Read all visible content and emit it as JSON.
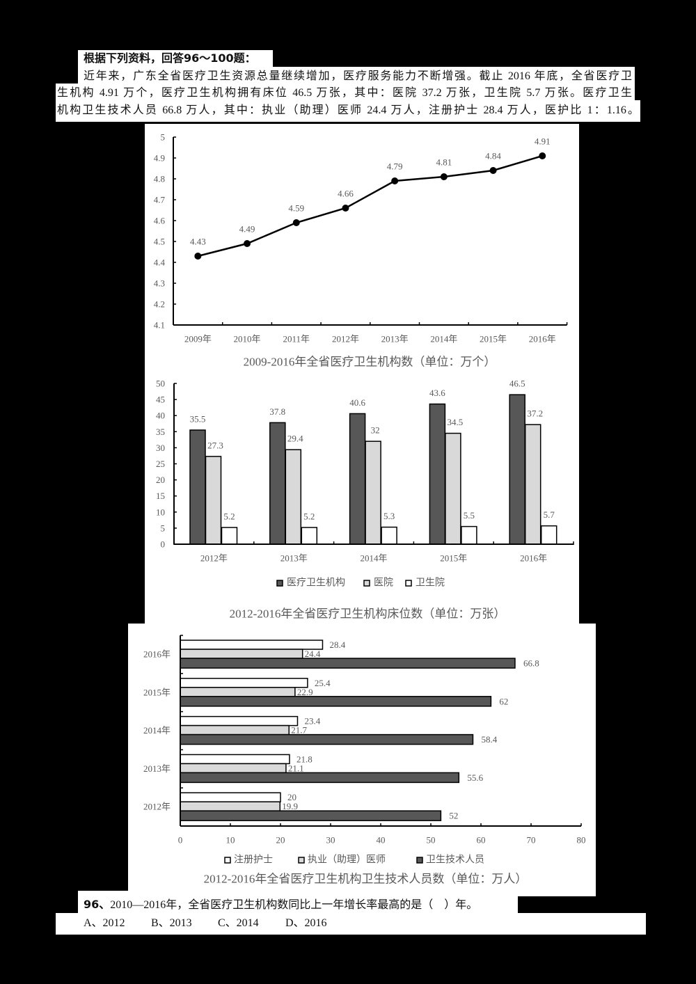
{
  "instruction": {
    "text": "根据下列资料，回答96～100题："
  },
  "passage": {
    "lines": [
      "近年来，广东全省医疗卫生资源总量继续增加，医疗服务能力不断增强。截止 2016 年底，全省医疗卫",
      "生机构 4.91 万个，医疗卫生机构拥有床位 46.5 万张，其中：医院 37.2 万张，卫生院 5.7 万张。医疗卫生",
      "机构卫生技术人员 66.8 万人，其中：执业（助理）医师 24.4 万人，注册护士 28.4 万人，医护比 1：1.16。"
    ]
  },
  "chart_data": [
    {
      "type": "line",
      "title": "2009-2016年全省医疗卫生机构数（单位：万个）",
      "xlabel": "",
      "ylabel": "",
      "categories": [
        "2009年",
        "2010年",
        "2011年",
        "2012年",
        "2013年",
        "2014年",
        "2015年",
        "2016年"
      ],
      "values": [
        4.43,
        4.49,
        4.59,
        4.66,
        4.79,
        4.81,
        4.84,
        4.91
      ],
      "ylim": [
        4.1,
        5
      ],
      "yticks": [
        "4.1",
        "4.2",
        "4.3",
        "4.4",
        "4.5",
        "4.6",
        "4.7",
        "4.8",
        "4.9",
        "5"
      ],
      "grid": false,
      "legend": null,
      "line_color": "#000000"
    },
    {
      "type": "bar",
      "orientation": "vertical",
      "title": "2012-2016年全省医疗卫生机构床位数（单位：万张）",
      "xlabel": "",
      "ylabel": "",
      "categories": [
        "2012年",
        "2013年",
        "2014年",
        "2015年",
        "2016年"
      ],
      "series": [
        {
          "name": "医疗卫生机构",
          "values": [
            35.5,
            37.8,
            40.6,
            43.6,
            46.5
          ],
          "color": "#575757"
        },
        {
          "name": "医院",
          "values": [
            27.3,
            29.4,
            32,
            34.5,
            37.2
          ],
          "color": "#d9d9d9"
        },
        {
          "name": "卫生院",
          "values": [
            5.2,
            5.2,
            5.3,
            5.5,
            5.7
          ],
          "color": "#ffffff"
        }
      ],
      "ylim": [
        0,
        50
      ],
      "yticks": [
        "0",
        "5",
        "10",
        "15",
        "20",
        "25",
        "30",
        "35",
        "40",
        "45",
        "50"
      ],
      "grid": false,
      "legend_position": "bottom"
    },
    {
      "type": "bar",
      "orientation": "horizontal",
      "title": "2012-2016年全省医疗卫生机构卫生技术人员数（单位：万人）",
      "xlabel": "",
      "ylabel": "",
      "categories": [
        "2012年",
        "2013年",
        "2014年",
        "2015年",
        "2016年"
      ],
      "series": [
        {
          "name": "注册护士",
          "values": [
            20,
            21.8,
            23.4,
            25.4,
            28.4
          ],
          "color": "#ffffff"
        },
        {
          "name": "执业（助理）医师",
          "values": [
            19.9,
            21.1,
            21.7,
            22.9,
            24.4
          ],
          "color": "#d9d9d9"
        },
        {
          "name": "卫生技术人员",
          "values": [
            52,
            55.6,
            58.4,
            62,
            66.8
          ],
          "color": "#575757"
        }
      ],
      "xlim": [
        0,
        80
      ],
      "xticks": [
        "0",
        "10",
        "20",
        "30",
        "40",
        "50",
        "60",
        "70",
        "80"
      ],
      "grid": false,
      "legend_position": "bottom"
    }
  ],
  "question": {
    "number": "96、",
    "text": "2010—2016年，全省医疗卫生机构数同比上一年增长率最高的是（　）年。",
    "options": [
      "A、2012",
      "B、2013",
      "C、2014",
      "D、2016"
    ]
  }
}
